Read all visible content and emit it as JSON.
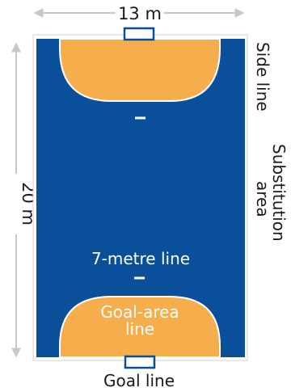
{
  "colors": {
    "court": "#0a4f9a",
    "goal_area": "#f6ad4c",
    "line": "#ffffff",
    "dimension": "#c7c7c7",
    "text_dark": "#1a1a1a",
    "text_light": "#ffffff",
    "goal": "#0a4f9a"
  },
  "labels": {
    "width": "13 m",
    "length": "20 m",
    "side_line": "Side line",
    "substitution_line1": "Substitution",
    "substitution_line2": "area",
    "seven_metre": "7-metre line",
    "goal_area_line1": "Goal-area",
    "goal_area_line2": "line",
    "goal_line": "Goal line"
  }
}
